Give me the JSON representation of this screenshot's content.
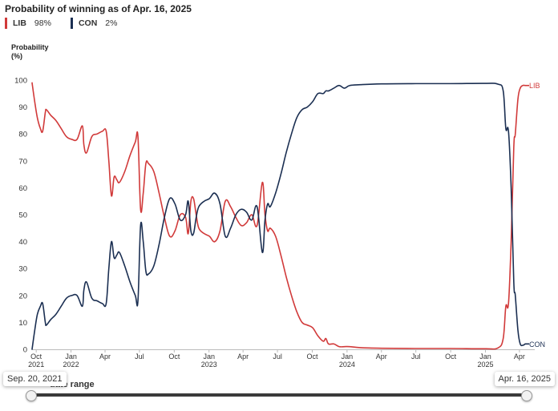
{
  "title": "Probability of winning as of Apr. 16, 2025",
  "legend": [
    {
      "name": "LIB",
      "value": "98%",
      "color": "#d13a3a"
    },
    {
      "name": "CON",
      "value": "2%",
      "color": "#1b2f52"
    }
  ],
  "slider": {
    "label": "date range",
    "start": "Sep. 20, 2021",
    "end": "Apr. 16, 2025"
  },
  "chart_data": {
    "type": "line",
    "ylabel": "Probability\n(%)",
    "ylim": [
      0,
      100
    ],
    "yticks": [
      0,
      10,
      20,
      30,
      40,
      50,
      60,
      70,
      80,
      90,
      100
    ],
    "xlim": [
      "2021-09-20",
      "2025-04-16"
    ],
    "xticks": [
      {
        "date": "2021-10-01",
        "label": "Oct",
        "year": "2021"
      },
      {
        "date": "2022-01-01",
        "label": "Jan",
        "year": "2022"
      },
      {
        "date": "2022-04-01",
        "label": "Apr",
        "year": ""
      },
      {
        "date": "2022-07-01",
        "label": "Jul",
        "year": ""
      },
      {
        "date": "2022-10-01",
        "label": "Oct",
        "year": ""
      },
      {
        "date": "2023-01-01",
        "label": "Jan",
        "year": "2023"
      },
      {
        "date": "2023-04-01",
        "label": "Apr",
        "year": ""
      },
      {
        "date": "2023-07-01",
        "label": "Jul",
        "year": ""
      },
      {
        "date": "2023-10-01",
        "label": "Oct",
        "year": ""
      },
      {
        "date": "2024-01-01",
        "label": "Jan",
        "year": "2024"
      },
      {
        "date": "2024-04-01",
        "label": "Apr",
        "year": ""
      },
      {
        "date": "2024-07-01",
        "label": "Jul",
        "year": ""
      },
      {
        "date": "2024-10-01",
        "label": "Oct",
        "year": ""
      },
      {
        "date": "2025-01-01",
        "label": "Jan",
        "year": "2025"
      },
      {
        "date": "2025-04-01",
        "label": "Apr",
        "year": ""
      }
    ],
    "grid": false,
    "series": [
      {
        "name": "LIB",
        "color": "#d13a3a",
        "end_label": "LIB",
        "points": [
          [
            "2021-09-20",
            99
          ],
          [
            "2021-09-27",
            92
          ],
          [
            "2021-10-04",
            86
          ],
          [
            "2021-10-12",
            82
          ],
          [
            "2021-10-18",
            81
          ],
          [
            "2021-10-25",
            88
          ],
          [
            "2021-10-28",
            89
          ],
          [
            "2021-11-08",
            87
          ],
          [
            "2021-11-22",
            85
          ],
          [
            "2021-12-06",
            82
          ],
          [
            "2021-12-20",
            79
          ],
          [
            "2022-01-03",
            78
          ],
          [
            "2022-01-17",
            78
          ],
          [
            "2022-01-31",
            83
          ],
          [
            "2022-02-04",
            76
          ],
          [
            "2022-02-11",
            73
          ],
          [
            "2022-02-25",
            79
          ],
          [
            "2022-03-11",
            80
          ],
          [
            "2022-03-25",
            81
          ],
          [
            "2022-04-04",
            81
          ],
          [
            "2022-04-11",
            70
          ],
          [
            "2022-04-18",
            57
          ],
          [
            "2022-04-25",
            64
          ],
          [
            "2022-05-02",
            63
          ],
          [
            "2022-05-09",
            62
          ],
          [
            "2022-05-23",
            66
          ],
          [
            "2022-06-06",
            72
          ],
          [
            "2022-06-20",
            77
          ],
          [
            "2022-06-27",
            79
          ],
          [
            "2022-07-04",
            52
          ],
          [
            "2022-07-11",
            58
          ],
          [
            "2022-07-18",
            69
          ],
          [
            "2022-07-25",
            69
          ],
          [
            "2022-08-08",
            66
          ],
          [
            "2022-08-22",
            58
          ],
          [
            "2022-09-05",
            49
          ],
          [
            "2022-09-19",
            42
          ],
          [
            "2022-10-03",
            44
          ],
          [
            "2022-10-17",
            50
          ],
          [
            "2022-10-31",
            49
          ],
          [
            "2022-11-07",
            43
          ],
          [
            "2022-11-14",
            55
          ],
          [
            "2022-11-21",
            56
          ],
          [
            "2022-11-28",
            50
          ],
          [
            "2022-12-05",
            45
          ],
          [
            "2022-12-19",
            43
          ],
          [
            "2023-01-02",
            42
          ],
          [
            "2023-01-16",
            40
          ],
          [
            "2023-01-30",
            44
          ],
          [
            "2023-02-13",
            55
          ],
          [
            "2023-02-27",
            53
          ],
          [
            "2023-03-13",
            49
          ],
          [
            "2023-03-27",
            46
          ],
          [
            "2023-04-10",
            47
          ],
          [
            "2023-04-24",
            50
          ],
          [
            "2023-05-08",
            46
          ],
          [
            "2023-05-22",
            62
          ],
          [
            "2023-05-29",
            50
          ],
          [
            "2023-06-05",
            44
          ],
          [
            "2023-06-12",
            45
          ],
          [
            "2023-06-26",
            42
          ],
          [
            "2023-07-10",
            35
          ],
          [
            "2023-07-24",
            27
          ],
          [
            "2023-08-07",
            20
          ],
          [
            "2023-08-21",
            14
          ],
          [
            "2023-09-04",
            10
          ],
          [
            "2023-09-18",
            9
          ],
          [
            "2023-10-02",
            8
          ],
          [
            "2023-10-16",
            5
          ],
          [
            "2023-10-30",
            3
          ],
          [
            "2023-11-06",
            4
          ],
          [
            "2023-11-13",
            2
          ],
          [
            "2023-11-27",
            2
          ],
          [
            "2023-12-11",
            1
          ],
          [
            "2023-12-25",
            1
          ],
          [
            "2024-01-08",
            1
          ],
          [
            "2024-02-05",
            0.6
          ],
          [
            "2024-04-01",
            0.4
          ],
          [
            "2024-07-01",
            0.3
          ],
          [
            "2024-10-01",
            0.3
          ],
          [
            "2025-01-01",
            0.2
          ],
          [
            "2025-02-03",
            0.5
          ],
          [
            "2025-02-17",
            4
          ],
          [
            "2025-02-24",
            16
          ],
          [
            "2025-03-03",
            17
          ],
          [
            "2025-03-10",
            40
          ],
          [
            "2025-03-17",
            75
          ],
          [
            "2025-03-21",
            80
          ],
          [
            "2025-03-28",
            93
          ],
          [
            "2025-04-03",
            97
          ],
          [
            "2025-04-10",
            98
          ],
          [
            "2025-04-16",
            98
          ]
        ]
      },
      {
        "name": "CON",
        "color": "#1b2f52",
        "end_label": "CON",
        "points": [
          [
            "2021-09-20",
            0
          ],
          [
            "2021-09-27",
            7
          ],
          [
            "2021-10-04",
            13
          ],
          [
            "2021-10-12",
            16
          ],
          [
            "2021-10-18",
            17
          ],
          [
            "2021-10-25",
            10
          ],
          [
            "2021-10-28",
            9
          ],
          [
            "2021-11-08",
            11
          ],
          [
            "2021-11-22",
            13
          ],
          [
            "2021-12-06",
            16
          ],
          [
            "2021-12-20",
            19
          ],
          [
            "2022-01-03",
            20
          ],
          [
            "2022-01-17",
            20
          ],
          [
            "2022-01-31",
            16
          ],
          [
            "2022-02-04",
            22
          ],
          [
            "2022-02-11",
            25
          ],
          [
            "2022-02-25",
            19
          ],
          [
            "2022-03-11",
            18
          ],
          [
            "2022-03-25",
            17
          ],
          [
            "2022-04-04",
            17
          ],
          [
            "2022-04-11",
            30
          ],
          [
            "2022-04-18",
            40
          ],
          [
            "2022-04-25",
            34
          ],
          [
            "2022-05-02",
            35
          ],
          [
            "2022-05-09",
            36
          ],
          [
            "2022-05-23",
            31
          ],
          [
            "2022-06-06",
            25
          ],
          [
            "2022-06-20",
            20
          ],
          [
            "2022-06-27",
            18
          ],
          [
            "2022-07-04",
            46
          ],
          [
            "2022-07-11",
            40
          ],
          [
            "2022-07-18",
            29
          ],
          [
            "2022-07-25",
            28
          ],
          [
            "2022-08-08",
            31
          ],
          [
            "2022-08-22",
            39
          ],
          [
            "2022-09-05",
            49
          ],
          [
            "2022-09-19",
            56
          ],
          [
            "2022-10-03",
            54
          ],
          [
            "2022-10-17",
            48
          ],
          [
            "2022-10-31",
            50
          ],
          [
            "2022-11-07",
            55
          ],
          [
            "2022-11-14",
            44
          ],
          [
            "2022-11-21",
            43
          ],
          [
            "2022-11-28",
            49
          ],
          [
            "2022-12-05",
            53
          ],
          [
            "2022-12-19",
            55
          ],
          [
            "2023-01-02",
            56
          ],
          [
            "2023-01-16",
            58
          ],
          [
            "2023-01-30",
            54
          ],
          [
            "2023-02-13",
            42
          ],
          [
            "2023-02-27",
            45
          ],
          [
            "2023-03-13",
            50
          ],
          [
            "2023-03-27",
            52
          ],
          [
            "2023-04-10",
            51
          ],
          [
            "2023-04-24",
            48
          ],
          [
            "2023-05-08",
            53
          ],
          [
            "2023-05-22",
            36
          ],
          [
            "2023-05-29",
            48
          ],
          [
            "2023-06-05",
            54
          ],
          [
            "2023-06-12",
            53
          ],
          [
            "2023-06-26",
            58
          ],
          [
            "2023-07-10",
            65
          ],
          [
            "2023-07-24",
            73
          ],
          [
            "2023-08-07",
            80
          ],
          [
            "2023-08-21",
            86
          ],
          [
            "2023-09-04",
            89
          ],
          [
            "2023-09-18",
            90
          ],
          [
            "2023-10-02",
            92
          ],
          [
            "2023-10-16",
            95
          ],
          [
            "2023-10-30",
            95
          ],
          [
            "2023-11-06",
            96
          ],
          [
            "2023-11-13",
            96
          ],
          [
            "2023-11-27",
            97
          ],
          [
            "2023-12-11",
            98
          ],
          [
            "2023-12-25",
            97
          ],
          [
            "2024-01-08",
            98
          ],
          [
            "2024-02-05",
            98.3
          ],
          [
            "2024-04-01",
            98.6
          ],
          [
            "2024-07-01",
            98.7
          ],
          [
            "2024-10-01",
            98.7
          ],
          [
            "2025-01-01",
            98.8
          ],
          [
            "2025-02-03",
            98.5
          ],
          [
            "2025-02-17",
            96
          ],
          [
            "2025-02-24",
            82
          ],
          [
            "2025-03-03",
            81
          ],
          [
            "2025-03-10",
            60
          ],
          [
            "2025-03-17",
            25
          ],
          [
            "2025-03-21",
            20
          ],
          [
            "2025-03-28",
            7
          ],
          [
            "2025-04-03",
            2
          ],
          [
            "2025-04-10",
            1.5
          ],
          [
            "2025-04-16",
            2
          ]
        ]
      }
    ]
  }
}
